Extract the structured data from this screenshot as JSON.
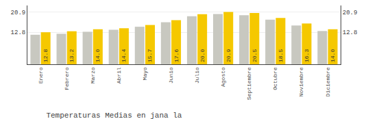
{
  "chart_data": {
    "type": "bar",
    "title": "Temperaturas Medias en jana la",
    "categories": [
      "Enero",
      "Febrero",
      "Marzo",
      "Abril",
      "Mayo",
      "Junio",
      "Julio",
      "Agosto",
      "Septiembre",
      "Octubre",
      "Noviembre",
      "Diciembre"
    ],
    "series": [
      {
        "color": "#C8C8C0",
        "values": [
          11.8,
          12.2,
          13.0,
          13.8,
          15.0,
          16.8,
          19.2,
          20.1,
          19.6,
          17.8,
          15.5,
          13.3
        ]
      },
      {
        "color": "#F5C800",
        "values": [
          12.8,
          13.2,
          14.0,
          14.4,
          15.7,
          17.6,
          20.0,
          20.9,
          20.5,
          18.5,
          16.3,
          14.0
        ],
        "data_labels": true,
        "value_labels": [
          "12.8",
          "13.2",
          "14.0",
          "14.4",
          "15.7",
          "17.6",
          "20.0",
          "20.9",
          "20.5",
          "18.5",
          "16.3",
          "14.0"
        ]
      }
    ],
    "ylim": [
      0,
      23.5
    ],
    "yticks": [
      12.8,
      20.9
    ],
    "y2lim": [
      0,
      23.5
    ],
    "y2ticks": [
      12.8,
      20.9
    ],
    "grid": true
  }
}
